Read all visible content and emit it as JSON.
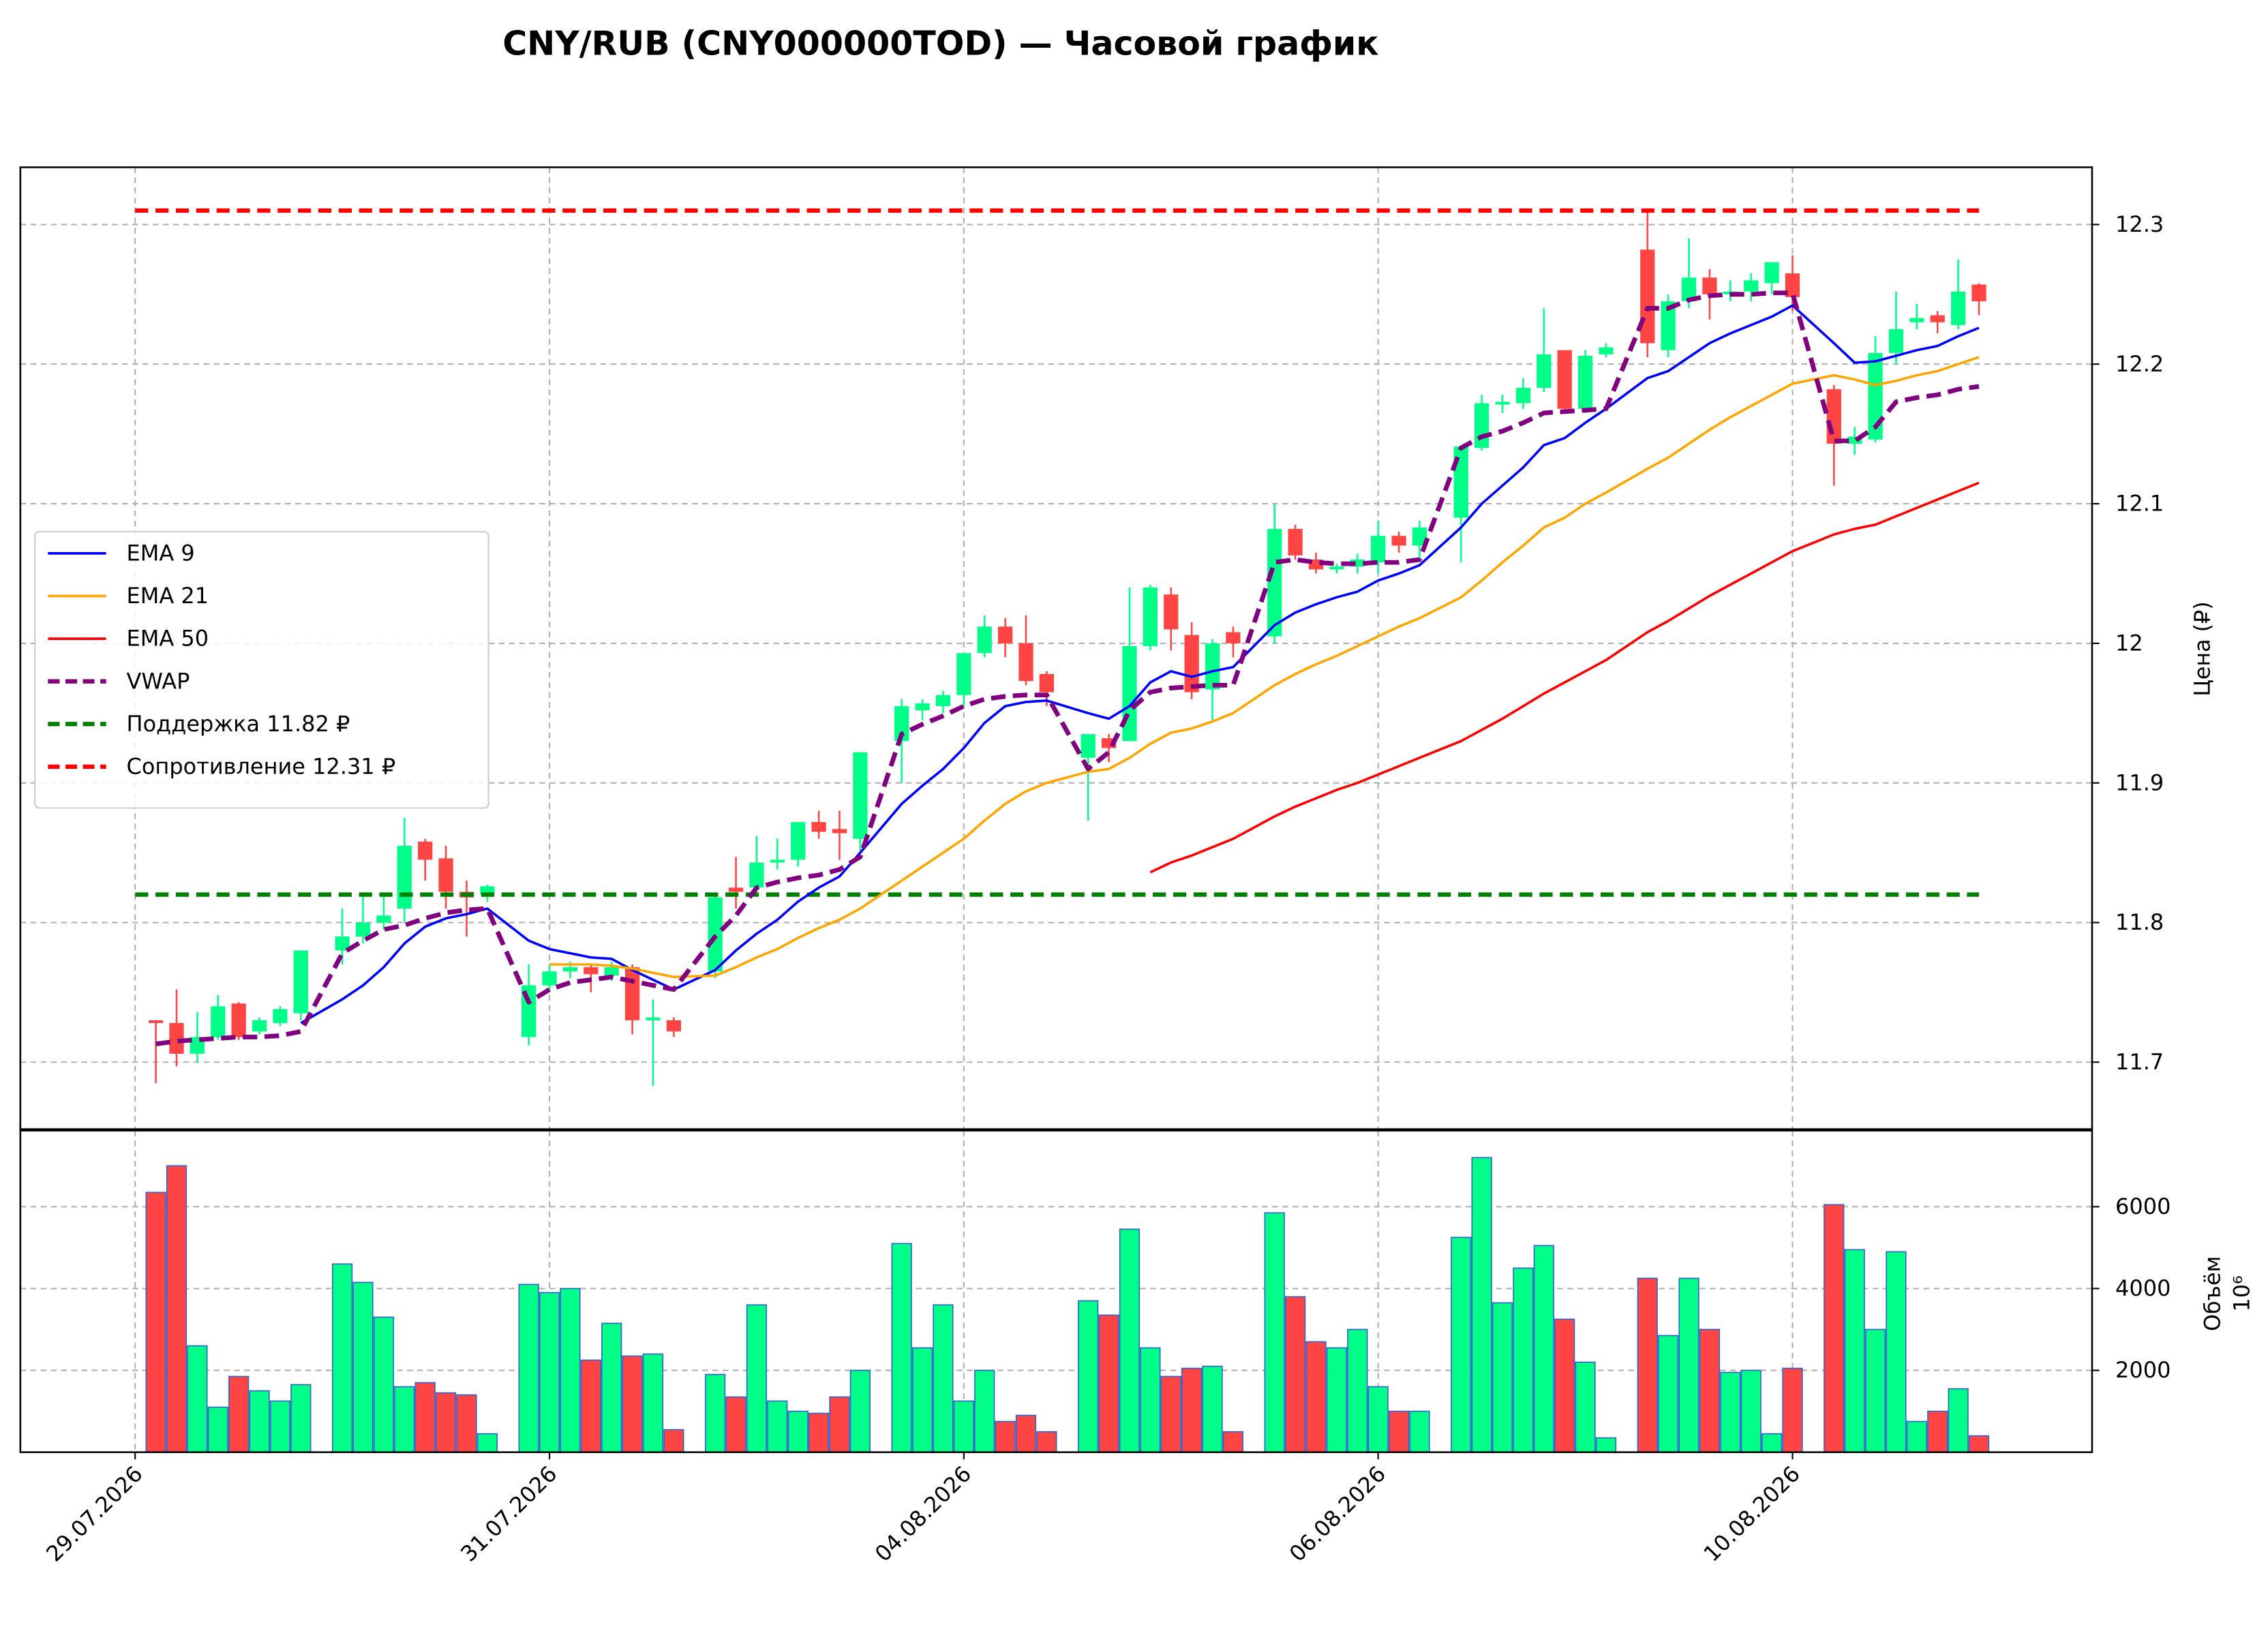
{
  "chart_data": {
    "type": "candlestick",
    "title": "CNY/RUB (CNY000000TOD) — Часовой график",
    "ylabel": "Цена (₽)",
    "volume_ylabel": "Объём",
    "volume_offset_label": "10⁶",
    "x": [
      1,
      2,
      3,
      4,
      5,
      6,
      7,
      8,
      10,
      11,
      12,
      13,
      14,
      15,
      16,
      17,
      19,
      20,
      21,
      22,
      23,
      24,
      25,
      26,
      28,
      29,
      30,
      31,
      32,
      33,
      34,
      35,
      37,
      38,
      39,
      40,
      41,
      42,
      43,
      44,
      46,
      47,
      48,
      49,
      50,
      51,
      52,
      53,
      55,
      56,
      57,
      58,
      59,
      60,
      61,
      62,
      64,
      65,
      66,
      67,
      68,
      69,
      70,
      71,
      73,
      74,
      75,
      76,
      77,
      78,
      79,
      80,
      82,
      83,
      84,
      85,
      86,
      87,
      88,
      89
    ],
    "open": [
      11.73,
      11.728,
      11.706,
      11.718,
      11.742,
      11.722,
      11.728,
      11.735,
      11.78,
      11.79,
      11.8,
      11.81,
      11.858,
      11.846,
      11.822,
      11.82,
      11.718,
      11.755,
      11.765,
      11.768,
      11.762,
      11.768,
      11.73,
      11.73,
      11.765,
      11.825,
      11.825,
      11.843,
      11.845,
      11.872,
      11.867,
      11.86,
      11.93,
      11.952,
      11.955,
      11.963,
      11.993,
      12.012,
      12.0,
      11.978,
      11.918,
      11.932,
      11.93,
      11.998,
      12.035,
      12.006,
      11.967,
      12.008,
      12.005,
      12.082,
      12.06,
      12.053,
      12.055,
      12.058,
      12.077,
      12.07,
      12.09,
      12.14,
      12.171,
      12.172,
      12.183,
      12.21,
      12.168,
      12.207,
      12.282,
      12.21,
      12.245,
      12.262,
      12.25,
      12.252,
      12.258,
      12.265,
      12.182,
      12.143,
      12.146,
      12.208,
      12.23,
      12.235,
      12.228,
      12.257
    ],
    "high": [
      11.73,
      11.752,
      11.736,
      11.748,
      11.743,
      11.732,
      11.74,
      11.78,
      11.81,
      11.82,
      11.82,
      11.875,
      11.86,
      11.855,
      11.83,
      11.827,
      11.77,
      11.77,
      11.772,
      11.77,
      11.772,
      11.77,
      11.745,
      11.732,
      11.82,
      11.847,
      11.862,
      11.86,
      11.872,
      11.88,
      11.88,
      11.922,
      11.96,
      11.96,
      11.966,
      11.993,
      12.02,
      12.018,
      12.02,
      11.98,
      11.935,
      11.935,
      12.04,
      12.042,
      12.04,
      12.015,
      12.003,
      12.012,
      12.1,
      12.085,
      12.065,
      12.057,
      12.064,
      12.088,
      12.08,
      12.088,
      12.141,
      12.178,
      12.178,
      12.19,
      12.24,
      12.21,
      12.21,
      12.215,
      12.31,
      12.25,
      12.29,
      12.268,
      12.26,
      12.265,
      12.273,
      12.278,
      12.185,
      12.155,
      12.22,
      12.252,
      12.243,
      12.238,
      12.275,
      12.258
    ],
    "low": [
      11.685,
      11.697,
      11.7,
      11.716,
      11.716,
      11.72,
      11.726,
      11.73,
      11.77,
      11.785,
      11.795,
      11.8,
      11.83,
      11.81,
      11.79,
      11.815,
      11.712,
      11.75,
      11.76,
      11.75,
      11.758,
      11.72,
      11.683,
      11.718,
      11.76,
      11.81,
      11.82,
      11.838,
      11.84,
      11.86,
      11.845,
      11.85,
      11.9,
      11.945,
      11.95,
      11.955,
      11.99,
      11.99,
      11.97,
      11.955,
      11.873,
      11.915,
      11.93,
      11.995,
      11.995,
      11.96,
      11.945,
      11.99,
      12.0,
      12.06,
      12.05,
      12.05,
      12.05,
      12.05,
      12.065,
      12.06,
      12.058,
      12.138,
      12.165,
      12.168,
      12.18,
      12.165,
      12.165,
      12.205,
      12.205,
      12.205,
      12.24,
      12.232,
      12.245,
      12.245,
      12.25,
      12.238,
      12.113,
      12.135,
      12.144,
      12.2,
      12.225,
      12.222,
      12.225,
      12.235
    ],
    "close": [
      11.728,
      11.706,
      11.718,
      11.74,
      11.718,
      11.73,
      11.738,
      11.78,
      11.79,
      11.8,
      11.805,
      11.855,
      11.845,
      11.822,
      11.818,
      11.826,
      11.755,
      11.765,
      11.768,
      11.763,
      11.768,
      11.73,
      11.732,
      11.722,
      11.818,
      11.822,
      11.843,
      11.845,
      11.872,
      11.865,
      11.864,
      11.922,
      11.955,
      11.957,
      11.963,
      11.993,
      12.012,
      12.0,
      11.973,
      11.965,
      11.935,
      11.925,
      11.998,
      12.04,
      12.01,
      11.965,
      12.0,
      12.0,
      12.082,
      12.063,
      12.053,
      12.055,
      12.06,
      12.077,
      12.07,
      12.083,
      12.141,
      12.172,
      12.173,
      12.183,
      12.207,
      12.168,
      12.206,
      12.212,
      12.215,
      12.245,
      12.262,
      12.25,
      12.252,
      12.26,
      12.273,
      12.248,
      12.143,
      12.148,
      12.208,
      12.225,
      12.233,
      12.23,
      12.252,
      12.245
    ],
    "volume": [
      6350,
      7000,
      2600,
      1100,
      1850,
      1500,
      1250,
      1650,
      4600,
      4150,
      3300,
      1600,
      1700,
      1450,
      1400,
      450,
      4100,
      3900,
      4000,
      2250,
      3150,
      2350,
      2400,
      550,
      1900,
      1350,
      3600,
      1250,
      1000,
      950,
      1350,
      2000,
      5100,
      2550,
      3600,
      1250,
      2000,
      750,
      900,
      500,
      3700,
      3350,
      5450,
      2550,
      1850,
      2050,
      2100,
      500,
      5850,
      3800,
      2700,
      2550,
      3000,
      1600,
      1000,
      1000,
      5250,
      7200,
      3650,
      4500,
      5050,
      3250,
      2200,
      350,
      4250,
      2850,
      4250,
      3000,
      1950,
      2000,
      450,
      2050,
      6050,
      4950,
      3000,
      4900,
      750,
      1000,
      1550,
      400
    ],
    "up_color": "#00ff88",
    "down_color": "#ff4444",
    "volume_edge_color": "#3366cc",
    "series": [
      {
        "name": "EMA 9",
        "color": "#0000ff",
        "dashed": false,
        "values": [
          null,
          null,
          null,
          null,
          null,
          null,
          null,
          11.728,
          11.745,
          11.755,
          11.768,
          11.785,
          11.797,
          11.803,
          11.806,
          11.81,
          11.787,
          11.781,
          11.778,
          11.775,
          11.774,
          11.766,
          11.759,
          11.752,
          11.766,
          11.78,
          11.792,
          11.802,
          11.815,
          11.825,
          11.833,
          11.85,
          11.885,
          11.898,
          11.91,
          11.925,
          11.943,
          11.955,
          11.958,
          11.959,
          11.95,
          11.946,
          11.955,
          11.972,
          11.98,
          11.976,
          11.98,
          11.983,
          12.013,
          12.022,
          12.028,
          12.033,
          12.037,
          12.045,
          12.05,
          12.056,
          12.083,
          12.1,
          12.113,
          12.126,
          12.142,
          12.147,
          12.158,
          12.168,
          12.19,
          12.195,
          12.205,
          12.215,
          12.222,
          12.228,
          12.234,
          12.242,
          12.215,
          12.201,
          12.202,
          12.206,
          12.21,
          12.213,
          12.22,
          12.226
        ]
      },
      {
        "name": "EMA 21",
        "color": "#ffa500",
        "dashed": false,
        "values": [
          null,
          null,
          null,
          null,
          null,
          null,
          null,
          null,
          null,
          null,
          null,
          null,
          null,
          null,
          null,
          null,
          null,
          11.77,
          11.77,
          11.77,
          11.769,
          11.767,
          11.764,
          11.761,
          11.762,
          11.768,
          11.775,
          11.781,
          11.789,
          11.796,
          11.802,
          11.81,
          11.83,
          11.84,
          11.85,
          11.86,
          11.873,
          11.885,
          11.894,
          11.9,
          11.908,
          11.91,
          11.918,
          11.928,
          11.936,
          11.939,
          11.944,
          11.95,
          11.97,
          11.978,
          11.985,
          11.991,
          11.998,
          12.005,
          12.012,
          12.018,
          12.033,
          12.045,
          12.058,
          12.07,
          12.083,
          12.09,
          12.1,
          12.108,
          12.125,
          12.133,
          12.143,
          12.153,
          12.162,
          12.17,
          12.178,
          12.186,
          12.192,
          12.189,
          12.185,
          12.188,
          12.192,
          12.195,
          12.2,
          12.205
        ]
      },
      {
        "name": "EMA 50",
        "color": "#ff0000",
        "dashed": false,
        "values": [
          null,
          null,
          null,
          null,
          null,
          null,
          null,
          null,
          null,
          null,
          null,
          null,
          null,
          null,
          null,
          null,
          null,
          null,
          null,
          null,
          null,
          null,
          null,
          null,
          null,
          null,
          null,
          null,
          null,
          null,
          null,
          null,
          null,
          null,
          null,
          null,
          null,
          null,
          null,
          null,
          null,
          null,
          null,
          11.836,
          11.843,
          11.848,
          11.854,
          11.86,
          11.876,
          11.883,
          11.889,
          11.895,
          11.9,
          11.906,
          11.912,
          11.918,
          11.93,
          11.938,
          11.946,
          11.955,
          11.964,
          11.972,
          11.98,
          11.988,
          12.008,
          12.016,
          12.025,
          12.034,
          12.042,
          12.05,
          12.058,
          12.066,
          12.078,
          12.082,
          12.085,
          12.091,
          12.097,
          12.103,
          12.109,
          12.115
        ]
      },
      {
        "name": "VWAP",
        "color": "#800080",
        "dashed": true,
        "values": [
          11.713,
          11.715,
          11.716,
          11.717,
          11.718,
          11.718,
          11.719,
          11.722,
          11.778,
          11.787,
          11.795,
          11.798,
          11.803,
          11.807,
          11.809,
          11.81,
          11.743,
          11.752,
          11.757,
          11.759,
          11.761,
          11.758,
          11.755,
          11.752,
          11.79,
          11.805,
          11.825,
          11.829,
          11.832,
          11.834,
          11.838,
          11.847,
          11.935,
          11.942,
          11.948,
          11.955,
          11.96,
          11.962,
          11.963,
          11.963,
          11.91,
          11.922,
          11.952,
          11.965,
          11.968,
          11.969,
          11.97,
          11.97,
          12.058,
          12.06,
          12.058,
          12.057,
          12.057,
          12.058,
          12.058,
          12.06,
          12.14,
          12.148,
          12.152,
          12.158,
          12.165,
          12.166,
          12.167,
          12.168,
          12.24,
          12.24,
          12.246,
          12.249,
          12.25,
          12.25,
          12.251,
          12.251,
          12.145,
          12.145,
          12.155,
          12.173,
          12.176,
          12.178,
          12.182,
          12.184
        ]
      }
    ],
    "levels": [
      {
        "name": "Поддержка 11.82 ₽",
        "value": 11.82,
        "color": "#008000"
      },
      {
        "name": "Сопротивление 12.31 ₽",
        "value": 12.31,
        "color": "#ff0000"
      }
    ],
    "xlim": [
      -5.54,
      94.46
    ],
    "xticks": [
      {
        "value": 0,
        "label": "29.07.2026"
      },
      {
        "value": 20,
        "label": "31.07.2026"
      },
      {
        "value": 40,
        "label": "04.08.2026"
      },
      {
        "value": 60,
        "label": "06.08.2026"
      },
      {
        "value": 80,
        "label": "10.08.2026"
      }
    ],
    "ylim": [
      11.652,
      12.341
    ],
    "yticks": [
      11.7,
      11.8,
      11.9,
      12.0,
      12.1,
      12.2,
      12.3
    ],
    "volume_ylim": [
      0,
      7860
    ],
    "volume_yticks": [
      2000,
      4000,
      6000
    ],
    "grid": true,
    "legend": "center left"
  }
}
